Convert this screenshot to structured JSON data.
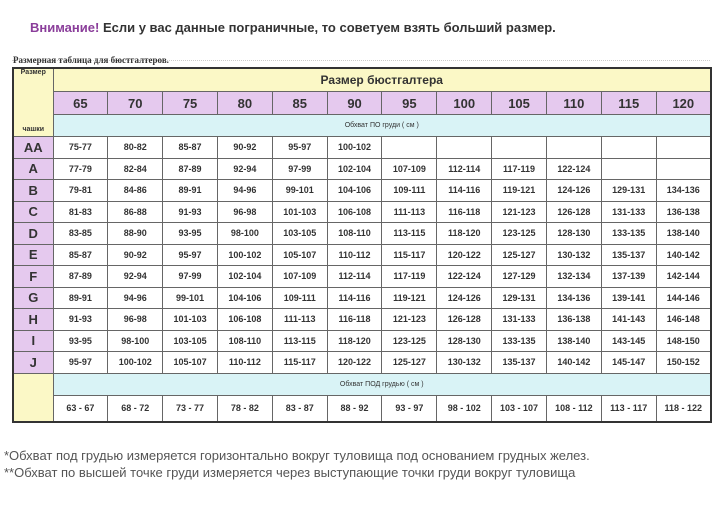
{
  "notice": {
    "warning": "Внимание!",
    "text": "Если у вас данные пограничные, то советуем взять больший размер."
  },
  "caption": "Размерная таблица для бюстгалтеров.",
  "table": {
    "corner_top": "Размер",
    "corner_bottom": "чашки",
    "header": "Размер бюстгалтера",
    "sizes": [
      "65",
      "70",
      "75",
      "80",
      "85",
      "90",
      "95",
      "100",
      "105",
      "110",
      "115",
      "120"
    ],
    "over_label": "Обхват ПО груди ( см )",
    "rows": [
      {
        "cup": "AA",
        "values": [
          "75-77",
          "80-82",
          "85-87",
          "90-92",
          "95-97",
          "100-102",
          "",
          "",
          "",
          "",
          "",
          ""
        ]
      },
      {
        "cup": "A",
        "values": [
          "77-79",
          "82-84",
          "87-89",
          "92-94",
          "97-99",
          "102-104",
          "107-109",
          "112-114",
          "117-119",
          "122-124",
          "",
          ""
        ]
      },
      {
        "cup": "B",
        "values": [
          "79-81",
          "84-86",
          "89-91",
          "94-96",
          "99-101",
          "104-106",
          "109-111",
          "114-116",
          "119-121",
          "124-126",
          "129-131",
          "134-136"
        ]
      },
      {
        "cup": "C",
        "values": [
          "81-83",
          "86-88",
          "91-93",
          "96-98",
          "101-103",
          "106-108",
          "111-113",
          "116-118",
          "121-123",
          "126-128",
          "131-133",
          "136-138"
        ]
      },
      {
        "cup": "D",
        "values": [
          "83-85",
          "88-90",
          "93-95",
          "98-100",
          "103-105",
          "108-110",
          "113-115",
          "118-120",
          "123-125",
          "128-130",
          "133-135",
          "138-140"
        ]
      },
      {
        "cup": "E",
        "values": [
          "85-87",
          "90-92",
          "95-97",
          "100-102",
          "105-107",
          "110-112",
          "115-117",
          "120-122",
          "125-127",
          "130-132",
          "135-137",
          "140-142"
        ]
      },
      {
        "cup": "F",
        "values": [
          "87-89",
          "92-94",
          "97-99",
          "102-104",
          "107-109",
          "112-114",
          "117-119",
          "122-124",
          "127-129",
          "132-134",
          "137-139",
          "142-144"
        ]
      },
      {
        "cup": "G",
        "values": [
          "89-91",
          "94-96",
          "99-101",
          "104-106",
          "109-111",
          "114-116",
          "119-121",
          "124-126",
          "129-131",
          "134-136",
          "139-141",
          "144-146"
        ]
      },
      {
        "cup": "H",
        "values": [
          "91-93",
          "96-98",
          "101-103",
          "106-108",
          "111-113",
          "116-118",
          "121-123",
          "126-128",
          "131-133",
          "136-138",
          "141-143",
          "146-148"
        ]
      },
      {
        "cup": "I",
        "values": [
          "93-95",
          "98-100",
          "103-105",
          "108-110",
          "113-115",
          "118-120",
          "123-125",
          "128-130",
          "133-135",
          "138-140",
          "143-145",
          "148-150"
        ]
      },
      {
        "cup": "J",
        "values": [
          "95-97",
          "100-102",
          "105-107",
          "110-112",
          "115-117",
          "120-122",
          "125-127",
          "130-132",
          "135-137",
          "140-142",
          "145-147",
          "150-152"
        ]
      }
    ],
    "under_label": "Обхват ПОД грудью ( см )",
    "under": [
      "63 - 67",
      "68 - 72",
      "73 - 77",
      "78 - 82",
      "83 - 87",
      "88 - 92",
      "93 - 97",
      "98 - 102",
      "103 - 107",
      "108 - 112",
      "113 - 117",
      "118 - 122"
    ]
  },
  "footnotes": [
    "*Обхват под грудью   измеряется  горизонтально вокруг туловища под основанием грудных желез.",
    "**Обхват по высшей точке груди измеряется через выступающие точки груди вокруг туловища"
  ]
}
